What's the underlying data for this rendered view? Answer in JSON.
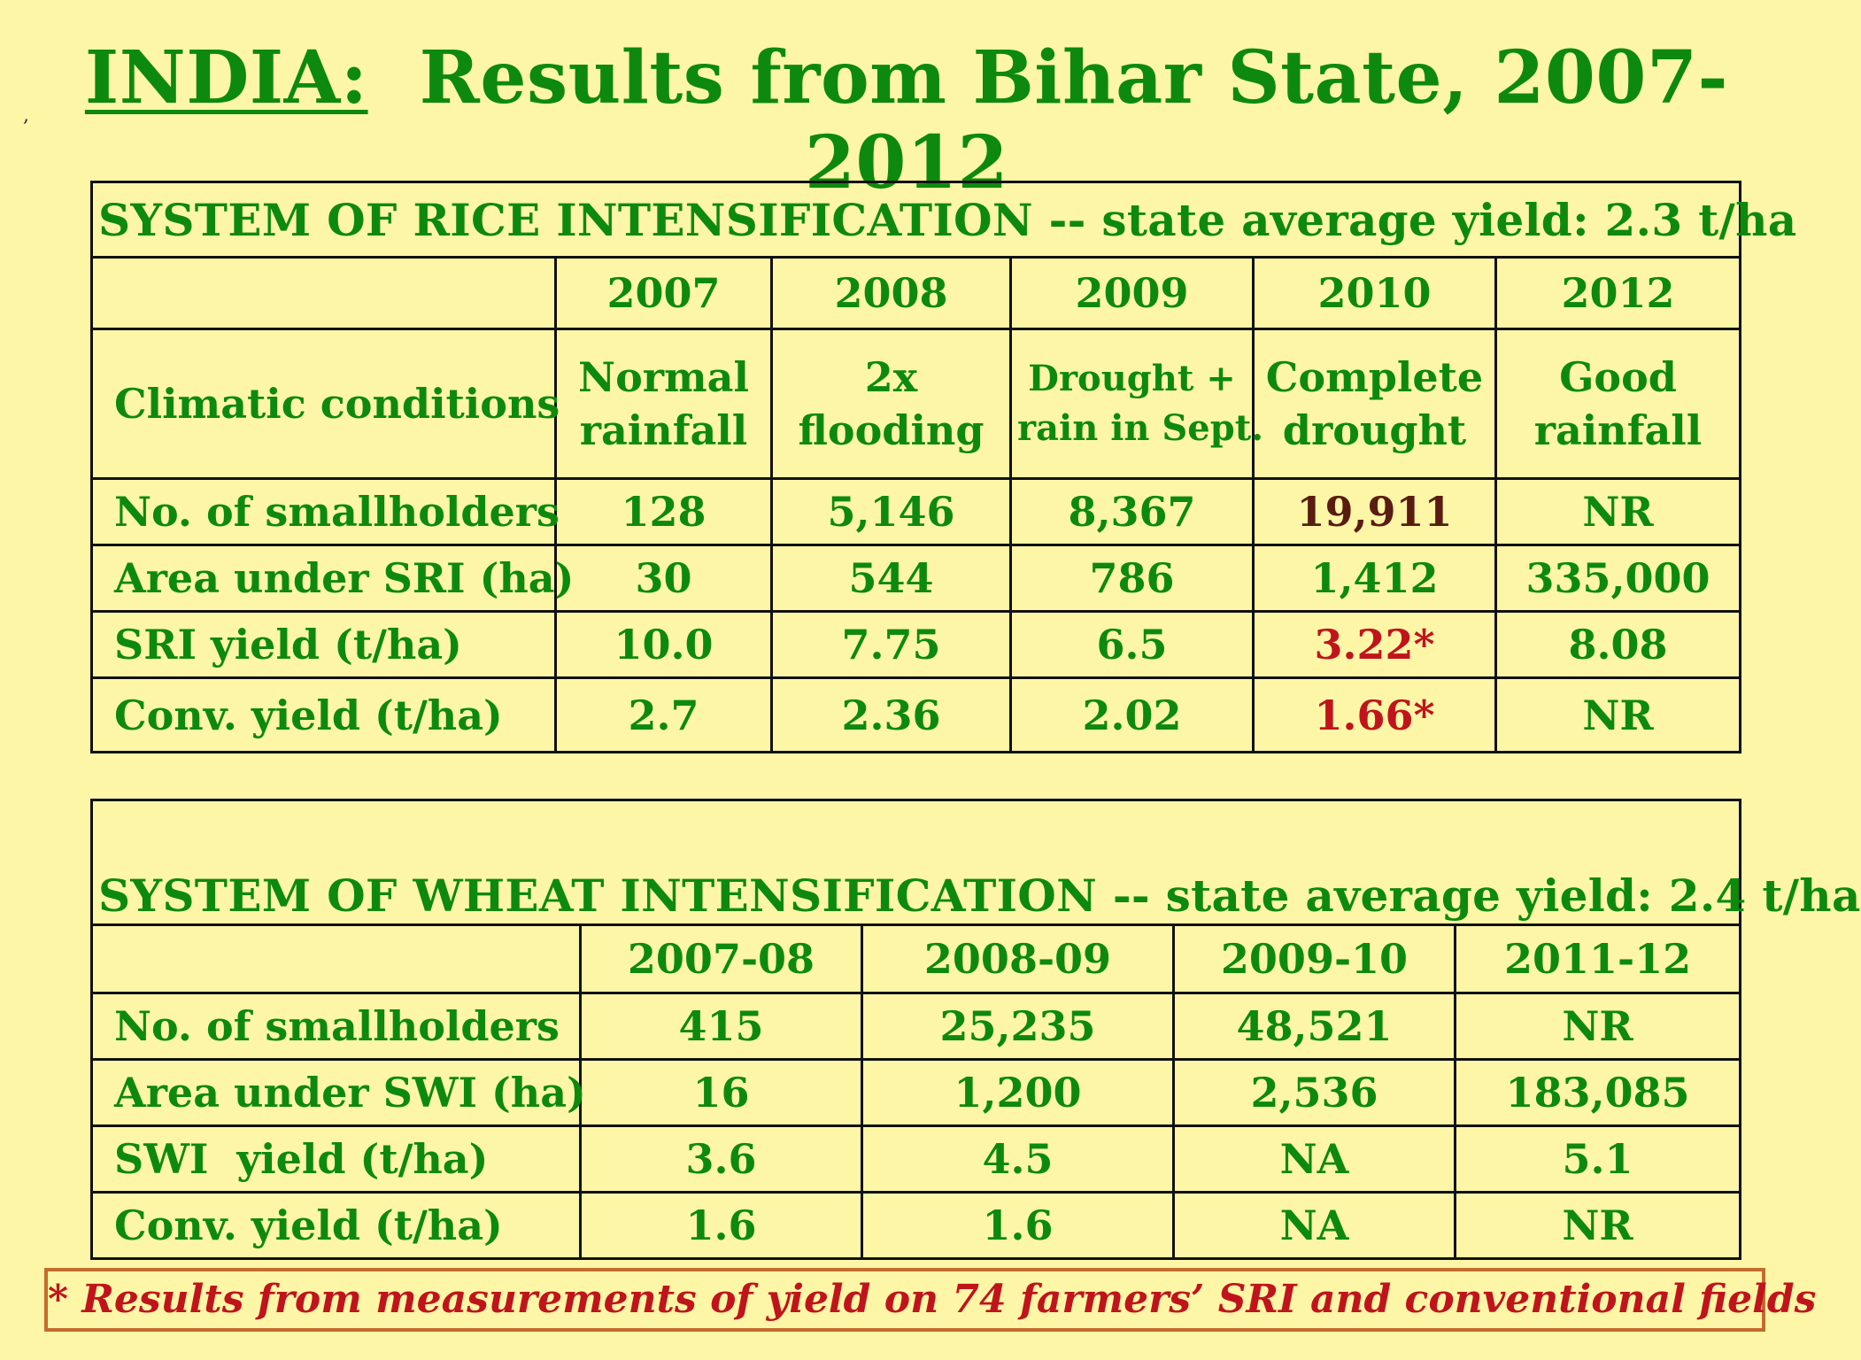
{
  "stray_mark": ",",
  "title": {
    "country": "INDIA:",
    "rest": "Results from Bihar State, 2007-2012"
  },
  "rice": {
    "header": "SYSTEM OF RICE INTENSIFICATION -- state average yield:  2.3 t/ha",
    "years": [
      "2007",
      "2008",
      "2009",
      "2010",
      "2012"
    ],
    "conditions": {
      "label": "Climatic conditions",
      "values": [
        [
          "Normal",
          "rainfall"
        ],
        [
          "2x",
          "flooding"
        ],
        [
          "Drought +",
          "rain in Sept."
        ],
        [
          "Complete",
          "drought"
        ],
        [
          "Good",
          "rainfall"
        ]
      ]
    },
    "rows": [
      {
        "label": "No. of smallholders",
        "values": [
          "128",
          "5,146",
          "8,367",
          "19,911",
          "NR"
        ]
      },
      {
        "label": "Area under SRI (ha)",
        "values": [
          "30",
          "544",
          "786",
          "1,412",
          "335,000"
        ]
      },
      {
        "label": "SRI yield (t/ha)",
        "values": [
          "10.0",
          "7.75",
          "6.5",
          "3.22*",
          "8.08"
        ]
      },
      {
        "label": "Conv. yield (t/ha)",
        "values": [
          "2.7",
          "2.36",
          "2.02",
          "1.66*",
          "NR"
        ]
      }
    ]
  },
  "wheat": {
    "header": "SYSTEM OF WHEAT INTENSIFICATION -- state average yield:  2.4 t/ha",
    "years": [
      "2007-08",
      "2008-09",
      "2009-10",
      "2011-12"
    ],
    "rows": [
      {
        "label": "No. of smallholders",
        "values": [
          "415",
          "25,235",
          "48,521",
          "NR"
        ]
      },
      {
        "label": "Area under SWI (ha)",
        "values": [
          "16",
          "1,200",
          "2,536",
          "183,085"
        ]
      },
      {
        "label": "SWI  yield (t/ha)",
        "values": [
          "3.6",
          "4.5",
          "NA",
          "5.1"
        ]
      },
      {
        "label": "Conv. yield (t/ha)",
        "values": [
          "1.6",
          "1.6",
          "NA",
          "NR"
        ]
      }
    ]
  },
  "footnote": "* Results from measurements of yield on 74 farmers’ SRI and conventional fields",
  "colors": {
    "background": "#fcf6a6",
    "green_text": "#0d8a0d",
    "red_text": "#c0141c",
    "dark_red_text": "#5a1b12",
    "footnote_border": "#c46b2e"
  }
}
